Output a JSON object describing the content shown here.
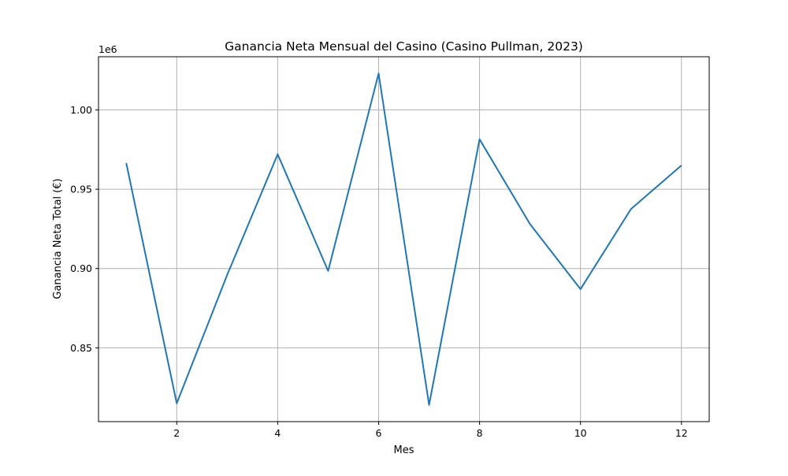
{
  "chart_data": {
    "type": "line",
    "title": "Ganancia Neta Mensual del Casino (Casino Pullman, 2023)",
    "xlabel": "Mes",
    "ylabel": "Ganancia Neta Total (€)",
    "y_offset_label": "1e6",
    "x": [
      1,
      2,
      3,
      4,
      5,
      6,
      7,
      8,
      9,
      10,
      11,
      12
    ],
    "series": [
      {
        "values": [
          966500,
          815000,
          896000,
          972000,
          898500,
          1023000,
          814000,
          981500,
          928000,
          887000,
          937500,
          965000
        ],
        "color": "#1f77b4"
      }
    ],
    "xlim": [
      0.45,
      12.55
    ],
    "ylim": [
      0.8035,
      1.0335
    ],
    "y_scale": 1000000,
    "xticks": [
      2,
      4,
      6,
      8,
      10,
      12
    ],
    "xtick_labels": [
      "2",
      "4",
      "6",
      "8",
      "10",
      "12"
    ],
    "yticks": [
      0.85,
      0.9,
      0.95,
      1.0
    ],
    "ytick_labels": [
      "0.85",
      "0.90",
      "0.95",
      "1.00"
    ],
    "grid": true,
    "grid_color": "#b0b0b0",
    "legend": "none"
  }
}
